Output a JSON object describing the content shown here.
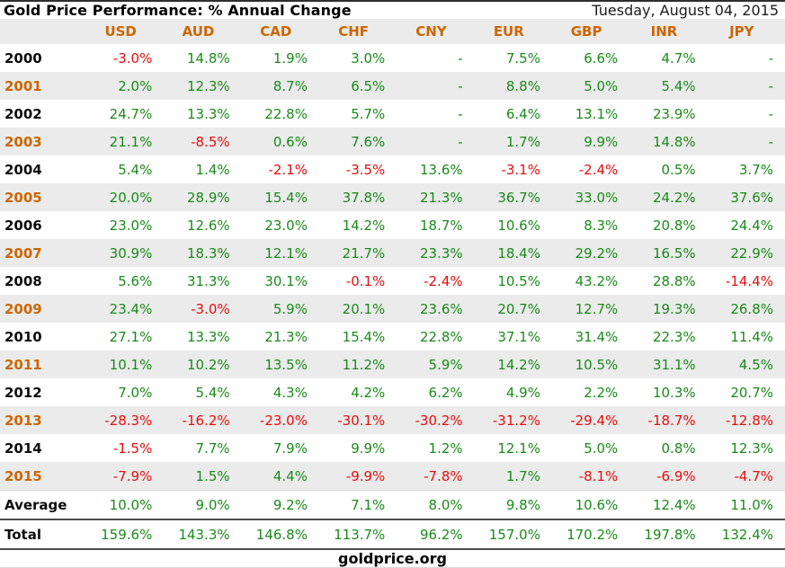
{
  "colors": {
    "accent_orange": "#cc6600",
    "positive_green": "#1a8a1a",
    "negative_red": "#e60d0d",
    "shaded_row_bg": "#ebebeb",
    "header_bg": "#ebebeb"
  },
  "chart_data": {
    "type": "table",
    "title": "Gold Price Performance: % Annual Change",
    "date": "Tuesday, August 04, 2015",
    "footer": "goldprice.org",
    "columns": [
      "USD",
      "AUD",
      "CAD",
      "CHF",
      "CNY",
      "EUR",
      "GBP",
      "INR",
      "JPY"
    ],
    "rows": [
      {
        "label": "2000",
        "accent": false,
        "shaded": false,
        "values": [
          "-3.0%",
          "14.8%",
          "1.9%",
          "3.0%",
          "-",
          "7.5%",
          "6.6%",
          "4.7%",
          "-"
        ]
      },
      {
        "label": "2001",
        "accent": true,
        "shaded": true,
        "values": [
          "2.0%",
          "12.3%",
          "8.7%",
          "6.5%",
          "-",
          "8.8%",
          "5.0%",
          "5.4%",
          "-"
        ]
      },
      {
        "label": "2002",
        "accent": false,
        "shaded": false,
        "values": [
          "24.7%",
          "13.3%",
          "22.8%",
          "5.7%",
          "-",
          "6.4%",
          "13.1%",
          "23.9%",
          "-"
        ]
      },
      {
        "label": "2003",
        "accent": true,
        "shaded": true,
        "values": [
          "21.1%",
          "-8.5%",
          "0.6%",
          "7.6%",
          "-",
          "1.7%",
          "9.9%",
          "14.8%",
          "-"
        ]
      },
      {
        "label": "2004",
        "accent": false,
        "shaded": false,
        "values": [
          "5.4%",
          "1.4%",
          "-2.1%",
          "-3.5%",
          "13.6%",
          "-3.1%",
          "-2.4%",
          "0.5%",
          "3.7%"
        ]
      },
      {
        "label": "2005",
        "accent": true,
        "shaded": true,
        "values": [
          "20.0%",
          "28.9%",
          "15.4%",
          "37.8%",
          "21.3%",
          "36.7%",
          "33.0%",
          "24.2%",
          "37.6%"
        ]
      },
      {
        "label": "2006",
        "accent": false,
        "shaded": false,
        "values": [
          "23.0%",
          "12.6%",
          "23.0%",
          "14.2%",
          "18.7%",
          "10.6%",
          "8.3%",
          "20.8%",
          "24.4%"
        ]
      },
      {
        "label": "2007",
        "accent": true,
        "shaded": true,
        "values": [
          "30.9%",
          "18.3%",
          "12.1%",
          "21.7%",
          "23.3%",
          "18.4%",
          "29.2%",
          "16.5%",
          "22.9%"
        ]
      },
      {
        "label": "2008",
        "accent": false,
        "shaded": false,
        "values": [
          "5.6%",
          "31.3%",
          "30.1%",
          "-0.1%",
          "-2.4%",
          "10.5%",
          "43.2%",
          "28.8%",
          "-14.4%"
        ]
      },
      {
        "label": "2009",
        "accent": true,
        "shaded": true,
        "values": [
          "23.4%",
          "-3.0%",
          "5.9%",
          "20.1%",
          "23.6%",
          "20.7%",
          "12.7%",
          "19.3%",
          "26.8%"
        ]
      },
      {
        "label": "2010",
        "accent": false,
        "shaded": false,
        "values": [
          "27.1%",
          "13.3%",
          "21.3%",
          "15.4%",
          "22.8%",
          "37.1%",
          "31.4%",
          "22.3%",
          "11.4%"
        ]
      },
      {
        "label": "2011",
        "accent": true,
        "shaded": true,
        "values": [
          "10.1%",
          "10.2%",
          "13.5%",
          "11.2%",
          "5.9%",
          "14.2%",
          "10.5%",
          "31.1%",
          "4.5%"
        ]
      },
      {
        "label": "2012",
        "accent": false,
        "shaded": false,
        "values": [
          "7.0%",
          "5.4%",
          "4.3%",
          "4.2%",
          "6.2%",
          "4.9%",
          "2.2%",
          "10.3%",
          "20.7%"
        ]
      },
      {
        "label": "2013",
        "accent": true,
        "shaded": true,
        "values": [
          "-28.3%",
          "-16.2%",
          "-23.0%",
          "-30.1%",
          "-30.2%",
          "-31.2%",
          "-29.4%",
          "-18.7%",
          "-12.8%"
        ]
      },
      {
        "label": "2014",
        "accent": false,
        "shaded": false,
        "values": [
          "-1.5%",
          "7.7%",
          "7.9%",
          "9.9%",
          "1.2%",
          "12.1%",
          "5.0%",
          "0.8%",
          "12.3%"
        ]
      },
      {
        "label": "2015",
        "accent": true,
        "shaded": true,
        "values": [
          "-7.9%",
          "1.5%",
          "4.4%",
          "-9.9%",
          "-7.8%",
          "1.7%",
          "-8.1%",
          "-6.9%",
          "-4.7%"
        ]
      },
      {
        "label": "Average",
        "accent": false,
        "shaded": false,
        "summary": true,
        "rule_top_light": true,
        "rule_bottom": true,
        "values": [
          "10.0%",
          "9.0%",
          "9.2%",
          "7.1%",
          "8.0%",
          "9.8%",
          "10.6%",
          "12.4%",
          "11.0%"
        ]
      },
      {
        "label": "Total",
        "accent": false,
        "shaded": false,
        "summary": true,
        "rule_bottom": true,
        "values": [
          "159.6%",
          "143.3%",
          "146.8%",
          "113.7%",
          "96.2%",
          "157.0%",
          "170.2%",
          "197.8%",
          "132.4%"
        ]
      }
    ]
  }
}
